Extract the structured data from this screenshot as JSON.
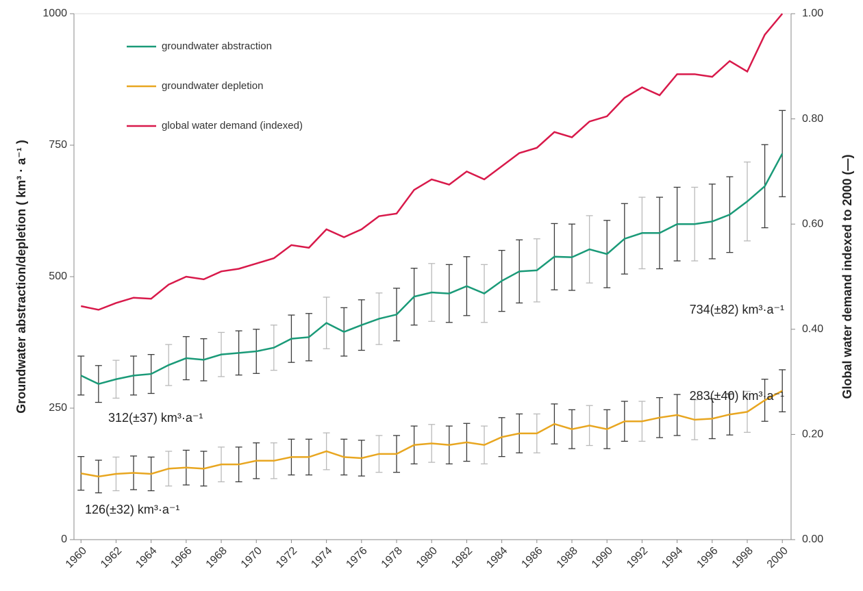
{
  "chart_data": {
    "type": "line",
    "ylabel": "Groundwater abstraction/depletion ( km³ · a⁻¹ )",
    "y2label": "Global water demand indexed to 2000 (—)",
    "x": [
      1960,
      1961,
      1962,
      1963,
      1964,
      1965,
      1966,
      1967,
      1968,
      1969,
      1970,
      1971,
      1972,
      1973,
      1974,
      1975,
      1976,
      1977,
      1978,
      1979,
      1980,
      1981,
      1982,
      1983,
      1984,
      1985,
      1986,
      1987,
      1988,
      1989,
      1990,
      1991,
      1992,
      1993,
      1994,
      1995,
      1996,
      1997,
      1998,
      1999,
      2000
    ],
    "xlim": [
      1959.6,
      2000.5
    ],
    "xticks": [
      1960,
      1962,
      1964,
      1966,
      1968,
      1970,
      1972,
      1974,
      1976,
      1978,
      1980,
      1982,
      1984,
      1986,
      1988,
      1990,
      1992,
      1994,
      1996,
      1998,
      2000
    ],
    "ylim": [
      0,
      1000
    ],
    "yticks": [
      0,
      250,
      500,
      750,
      1000
    ],
    "y2lim": [
      0,
      1
    ],
    "y2ticks": [
      {
        "value": 0,
        "label": "0.00"
      },
      {
        "value": 0.2,
        "label": "0.20"
      },
      {
        "value": 0.4,
        "label": "0.40"
      },
      {
        "value": 0.6,
        "label": "0.60"
      },
      {
        "value": 0.8,
        "label": "0.80"
      },
      {
        "value": 1,
        "label": "1.00"
      }
    ],
    "error_color": "#3a3a3a",
    "series": [
      {
        "name": "groundwater abstraction",
        "color": "#1a9a78",
        "values": [
          312,
          296,
          305,
          312,
          315,
          332,
          345,
          342,
          352,
          355,
          358,
          365,
          382,
          385,
          412,
          395,
          408,
          420,
          428,
          462,
          470,
          468,
          482,
          468,
          492,
          510,
          512,
          538,
          537,
          552,
          543,
          572,
          583,
          583,
          600,
          600,
          605,
          618,
          643,
          672,
          734
        ],
        "errors": [
          37,
          35,
          36,
          37,
          37,
          39,
          41,
          40,
          42,
          42,
          42,
          43,
          45,
          45,
          49,
          46,
          48,
          49,
          50,
          54,
          55,
          55,
          56,
          55,
          58,
          60,
          60,
          63,
          63,
          64,
          64,
          67,
          68,
          68,
          70,
          70,
          71,
          72,
          75,
          79,
          82
        ]
      },
      {
        "name": "groundwater depletion",
        "color": "#e8a620",
        "values": [
          126,
          120,
          125,
          127,
          125,
          135,
          137,
          135,
          143,
          143,
          150,
          150,
          157,
          157,
          168,
          157,
          155,
          163,
          163,
          180,
          183,
          180,
          185,
          180,
          195,
          202,
          202,
          220,
          210,
          217,
          210,
          225,
          225,
          232,
          237,
          228,
          230,
          238,
          243,
          265,
          283
        ],
        "errors": [
          32,
          31,
          32,
          32,
          32,
          33,
          33,
          33,
          33,
          33,
          34,
          34,
          34,
          34,
          35,
          34,
          34,
          35,
          35,
          36,
          36,
          36,
          36,
          36,
          37,
          37,
          37,
          38,
          37,
          38,
          37,
          38,
          38,
          38,
          39,
          38,
          38,
          39,
          39,
          40,
          40
        ]
      },
      {
        "name": "global water demand (indexed)",
        "color": "#d8194a",
        "axis": "y2",
        "values": [
          0.444,
          0.437,
          0.45,
          0.46,
          0.458,
          0.485,
          0.5,
          0.495,
          0.51,
          0.515,
          0.525,
          0.535,
          0.56,
          0.555,
          0.59,
          0.575,
          0.59,
          0.615,
          0.62,
          0.665,
          0.685,
          0.675,
          0.7,
          0.685,
          0.71,
          0.735,
          0.745,
          0.775,
          0.765,
          0.795,
          0.805,
          0.84,
          0.86,
          0.845,
          0.885,
          0.885,
          0.88,
          0.91,
          0.89,
          0.96,
          1.0
        ]
      }
    ],
    "annotations": [
      "312(±37) km³·a⁻¹",
      "126(±32)  km³·a⁻¹",
      "734(±82) km³·a⁻¹",
      "283(±40) km³·a⁻¹"
    ]
  }
}
